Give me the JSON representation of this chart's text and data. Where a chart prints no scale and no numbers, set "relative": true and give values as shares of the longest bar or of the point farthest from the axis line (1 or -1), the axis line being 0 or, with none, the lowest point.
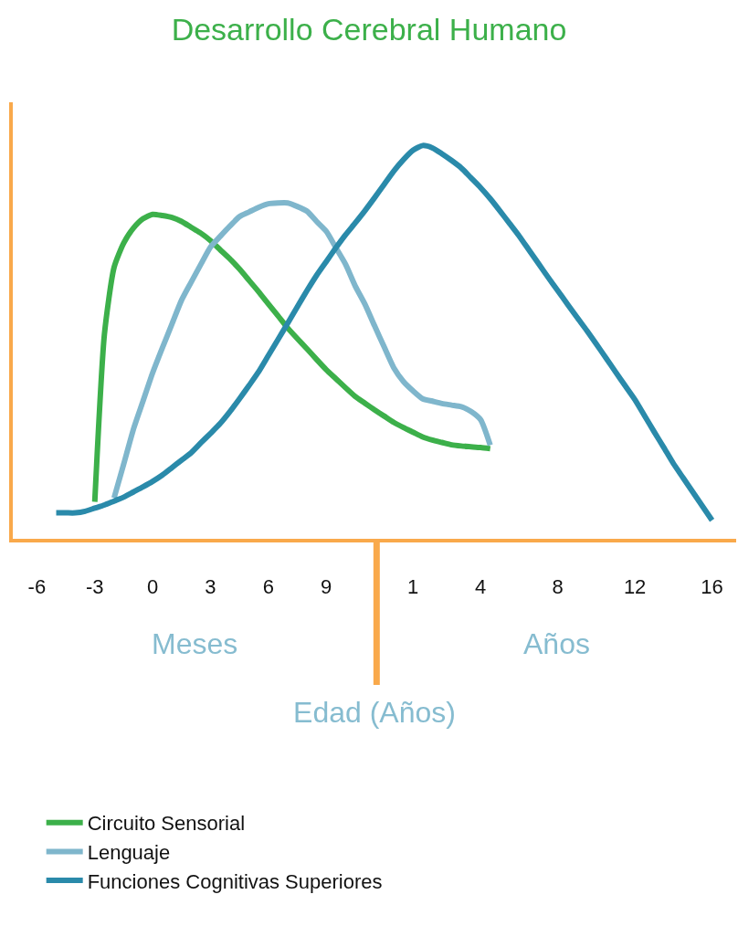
{
  "chart_data": {
    "type": "line",
    "title": "Desarrollo Cerebral Humano",
    "xlabel": "Edad (Años)",
    "relative": true,
    "annotations": [
      "Meses",
      "Años"
    ],
    "categories": [
      null,
      null,
      "-6",
      null,
      null,
      null,
      null,
      null,
      "-3",
      null,
      null,
      null,
      null,
      null,
      "0",
      null,
      null,
      null,
      null,
      null,
      "3",
      null,
      null,
      null,
      null,
      null,
      "6",
      null,
      null,
      null,
      null,
      null,
      "9",
      null,
      null,
      null,
      null,
      null,
      null,
      null,
      null,
      "1",
      null,
      null,
      null,
      null,
      null,
      null,
      "4",
      null,
      null,
      null,
      null,
      null,
      null,
      null,
      "8",
      null,
      null,
      null,
      null,
      null,
      null,
      null,
      "12",
      null,
      null,
      null,
      null,
      null,
      null,
      null,
      "16",
      null,
      null
    ],
    "legend": "bottom",
    "marker": "none",
    "line_style": "solid",
    "series": [
      {
        "name": "Circuito Sensorial",
        "color": "#3cb04a",
        "values": [
          null,
          null,
          null,
          null,
          null,
          null,
          null,
          null,
          0.094,
          0.52,
          0.69,
          0.752,
          0.79,
          0.814,
          0.825,
          0.822,
          0.817,
          0.807,
          0.792,
          0.777,
          0.758,
          0.735,
          0.712,
          0.686,
          0.657,
          0.628,
          0.597,
          0.567,
          0.536,
          0.509,
          0.483,
          0.456,
          0.43,
          0.407,
          0.384,
          0.362,
          0.345,
          0.328,
          0.312,
          0.296,
          0.283,
          0.271,
          0.259,
          0.251,
          0.245,
          0.239,
          0.236,
          0.234,
          0.232,
          0.229,
          null,
          null,
          null,
          null,
          null,
          null,
          null,
          null,
          null,
          null,
          null,
          null,
          null,
          null,
          null,
          null,
          null,
          null,
          null,
          null,
          null,
          null,
          null,
          null,
          null
        ]
      },
      {
        "name": "Lenguaje",
        "color": "#7fb6cc",
        "values": [
          null,
          null,
          null,
          null,
          null,
          null,
          null,
          null,
          null,
          null,
          0.104,
          0.19,
          0.278,
          0.35,
          0.422,
          0.485,
          0.546,
          0.607,
          0.653,
          0.698,
          0.742,
          0.769,
          0.795,
          0.819,
          0.831,
          0.843,
          0.852,
          0.854,
          0.854,
          0.845,
          0.833,
          0.807,
          0.782,
          0.74,
          0.698,
          0.643,
          0.597,
          0.542,
          0.488,
          0.435,
          0.4,
          0.376,
          0.356,
          0.35,
          0.344,
          0.34,
          0.336,
          0.324,
          0.303,
          0.238,
          null,
          null,
          null,
          null,
          null,
          null,
          null,
          null,
          null,
          null,
          null,
          null,
          null,
          null,
          null,
          null,
          null,
          null,
          null,
          null,
          null,
          null,
          null,
          null,
          null
        ]
      },
      {
        "name": "Funciones Cognitivas Superiores",
        "color": "#2a8aaa",
        "values": [
          null,
          null,
          null,
          null,
          0.066,
          0.066,
          0.066,
          0.07,
          0.078,
          0.086,
          0.096,
          0.106,
          0.119,
          0.132,
          0.146,
          0.162,
          0.181,
          0.2,
          0.219,
          0.244,
          0.268,
          0.293,
          0.323,
          0.356,
          0.39,
          0.425,
          0.466,
          0.507,
          0.548,
          0.59,
          0.631,
          0.67,
          0.705,
          0.74,
          0.773,
          0.803,
          0.834,
          0.867,
          0.901,
          0.935,
          0.964,
          0.988,
          1.0,
          0.994,
          0.979,
          0.962,
          0.943,
          0.918,
          0.893,
          0.865,
          0.834,
          0.802,
          0.77,
          0.735,
          0.7,
          0.665,
          0.631,
          0.597,
          0.563,
          0.53,
          0.495,
          0.46,
          0.424,
          0.389,
          0.354,
          0.313,
          0.272,
          0.232,
          0.191,
          0.155,
          0.119,
          0.083,
          0.047,
          null,
          null
        ]
      }
    ]
  }
}
